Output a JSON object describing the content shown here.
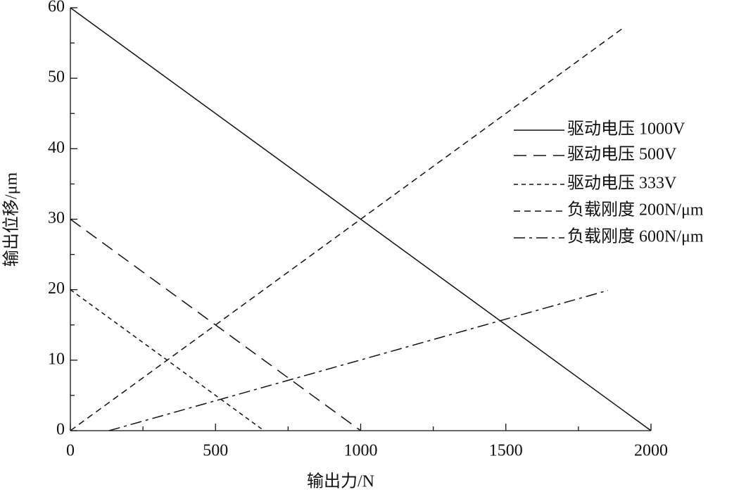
{
  "chart_data": {
    "type": "line",
    "xlabel": "输出力/N",
    "ylabel": "输出位移/μm",
    "xlim": [
      0,
      2000
    ],
    "ylim": [
      0,
      60
    ],
    "xticks": [
      0,
      500,
      1000,
      1500,
      2000
    ],
    "yticks": [
      0,
      10,
      20,
      30,
      40,
      50,
      60
    ],
    "xminorticks": [
      250,
      750,
      1250,
      1750
    ],
    "yminorticks": [
      5,
      15,
      25,
      35,
      45,
      55
    ],
    "legend": "right",
    "series": [
      {
        "name": "驱动电压 1000V",
        "color": "#111111",
        "dash": "solid",
        "x": [
          0,
          2000
        ],
        "values": [
          60,
          0
        ]
      },
      {
        "name": "驱动电压 500V",
        "color": "#111111",
        "dash": "long-dash",
        "x": [
          0,
          1000
        ],
        "values": [
          30,
          0
        ]
      },
      {
        "name": "驱动电压 333V",
        "color": "#111111",
        "dash": "short-dash",
        "x": [
          0,
          667
        ],
        "values": [
          20,
          0
        ]
      },
      {
        "name": "负载刚度 200N/μm",
        "color": "#111111",
        "dash": "dash",
        "x": [
          0,
          1910
        ],
        "values": [
          0,
          57.3
        ]
      },
      {
        "name": "负载刚度 600N/μm",
        "color": "#111111",
        "dash": "dash-dot",
        "x": [
          133,
          1852
        ],
        "values": [
          0,
          19.9
        ]
      }
    ]
  }
}
